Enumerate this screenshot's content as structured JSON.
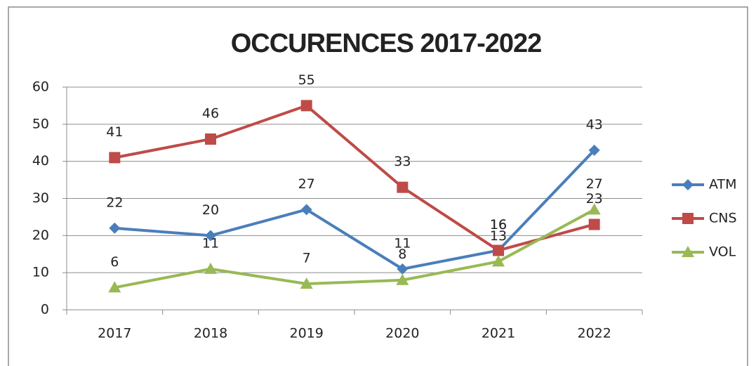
{
  "chart_data": {
    "type": "line",
    "title": "OCCURENCES 2017-2022",
    "categories": [
      "2017",
      "2018",
      "2019",
      "2020",
      "2021",
      "2022"
    ],
    "series": [
      {
        "name": "ATM",
        "color": "#4a7ebb",
        "marker": "diamond",
        "values": [
          22,
          20,
          27,
          11,
          16,
          43
        ]
      },
      {
        "name": "CNS",
        "color": "#be4b48",
        "marker": "square",
        "values": [
          41,
          46,
          55,
          33,
          16,
          23
        ]
      },
      {
        "name": "VOL",
        "color": "#98b954",
        "marker": "triangle",
        "values": [
          6,
          11,
          7,
          8,
          13,
          27
        ]
      }
    ],
    "ylim": [
      0,
      60
    ],
    "yticks": [
      0,
      10,
      20,
      30,
      40,
      50,
      60
    ],
    "grid": true,
    "legend": "right"
  }
}
